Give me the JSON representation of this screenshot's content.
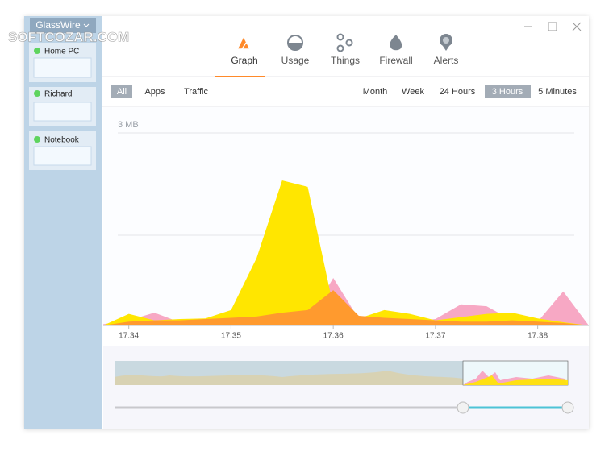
{
  "watermark": "SOFTCOZAR.COM",
  "sidebar": {
    "app_menu": "GlassWire",
    "devices": [
      "Home PC",
      "Richard",
      "Notebook"
    ]
  },
  "tabs": [
    "Graph",
    "Usage",
    "Things",
    "Firewall",
    "Alerts"
  ],
  "filters": [
    "All",
    "Apps",
    "Traffic"
  ],
  "ranges": [
    "Month",
    "Week",
    "24 Hours",
    "3 Hours",
    "5 Minutes"
  ],
  "chart_data": {
    "type": "area",
    "x": [
      1053.75,
      1054,
      1054.25,
      1054.5,
      1054.75,
      1055,
      1055.25,
      1055.5,
      1055.75,
      1056,
      1056.25,
      1056.5,
      1056.75,
      1057,
      1057.25,
      1057.5,
      1057.75,
      1058,
      1058.25,
      1058.5
    ],
    "xlim": [
      1053.75,
      1058.5
    ],
    "xticks": [
      {
        "value": 1054,
        "label": "17:34"
      },
      {
        "value": 1055,
        "label": "17:35"
      },
      {
        "value": 1056,
        "label": "17:36"
      },
      {
        "value": 1057,
        "label": "17:37"
      },
      {
        "value": 1058,
        "label": "17:38"
      }
    ],
    "ylim": [
      0,
      3
    ],
    "yticks": [
      {
        "value": 3,
        "label": "3 MB"
      }
    ],
    "series": [
      {
        "color": "#f7a8c4",
        "values": [
          0.02,
          0.08,
          0.2,
          0.05,
          0.06,
          0.08,
          0.05,
          0.04,
          0.06,
          0.74,
          0.1,
          0.08,
          0.06,
          0.1,
          0.33,
          0.3,
          0.08,
          0.06,
          0.53,
          0
        ]
      },
      {
        "color": "#ffe600",
        "values": [
          0,
          0.18,
          0.08,
          0.1,
          0.11,
          0.24,
          1.05,
          2.26,
          2.16,
          0.3,
          0.11,
          0.24,
          0.18,
          0.08,
          0.13,
          0.18,
          0.2,
          0.11,
          0.05,
          0
        ]
      },
      {
        "color": "#ff9a2e",
        "values": [
          0,
          0.06,
          0.08,
          0.08,
          0.1,
          0.12,
          0.14,
          0.2,
          0.24,
          0.55,
          0.15,
          0.12,
          0.1,
          0.08,
          0.06,
          0.06,
          0.08,
          0.06,
          0.04,
          0
        ]
      }
    ]
  }
}
